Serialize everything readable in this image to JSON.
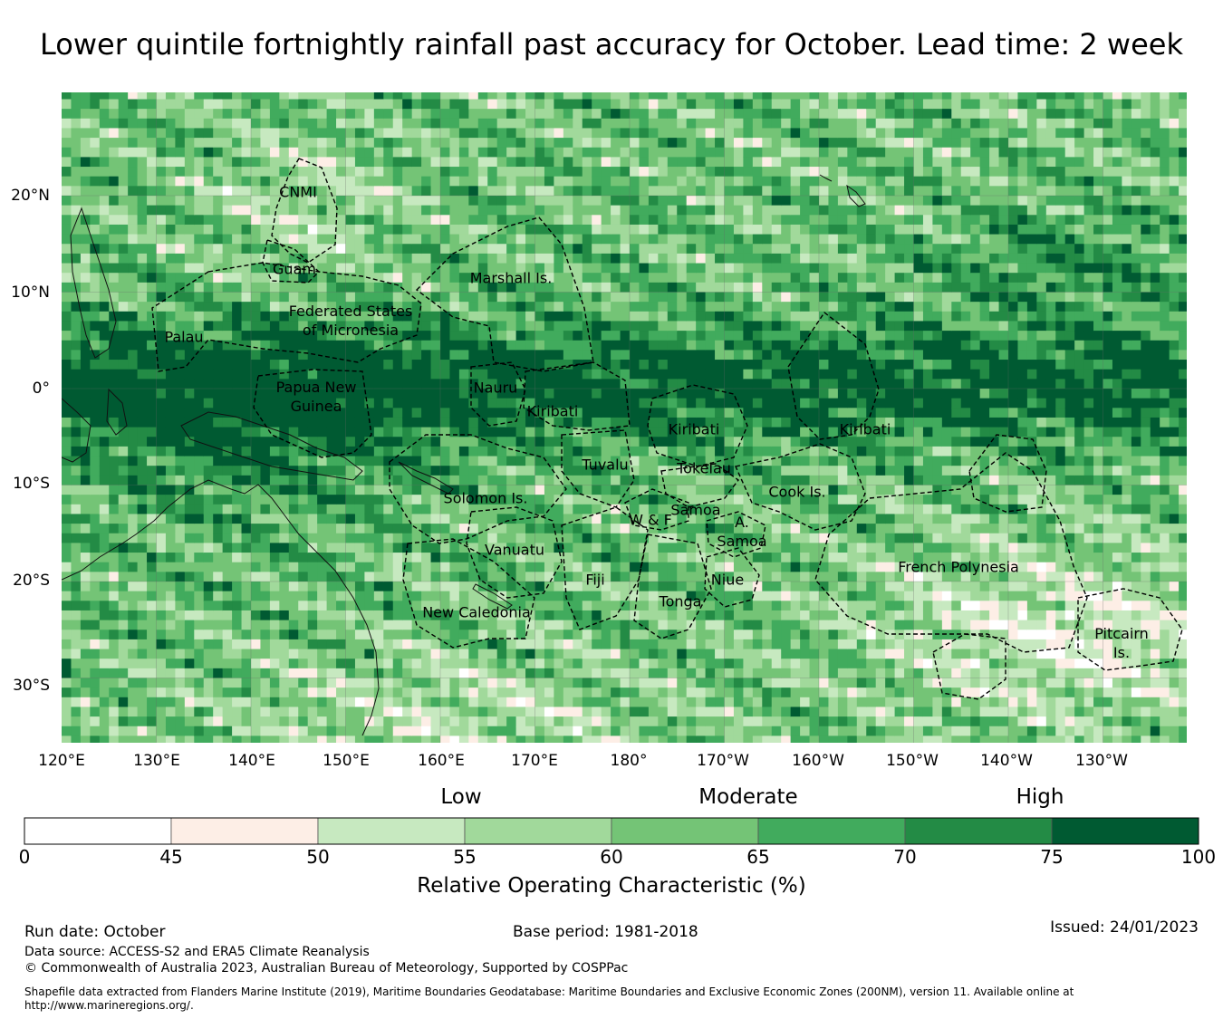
{
  "title": "Lower quintile fortnightly rainfall past accuracy for October. Lead time: 2 week",
  "map": {
    "lon_ticks": [
      "120°E",
      "130°E",
      "140°E",
      "150°E",
      "160°E",
      "170°E",
      "180°",
      "170°W",
      "160°W",
      "150°W",
      "140°W",
      "130°W"
    ],
    "lat_ticks": [
      "20°N",
      "10°N",
      "0°",
      "10°S",
      "20°S",
      "30°S"
    ],
    "regions": [
      {
        "label": "CNMI"
      },
      {
        "label": "Guam"
      },
      {
        "label": "Marshall Is."
      },
      {
        "label": "Federated States\nof Micronesia"
      },
      {
        "label": "Palau"
      },
      {
        "label": "Papua New\nGuinea"
      },
      {
        "label": "Nauru"
      },
      {
        "label": "Kiribati"
      },
      {
        "label": "Kiribati"
      },
      {
        "label": "Kiribati"
      },
      {
        "label": "Tuvalu"
      },
      {
        "label": "Tokelau"
      },
      {
        "label": "Cook Is."
      },
      {
        "label": "Solomon Is."
      },
      {
        "label": "Samoa"
      },
      {
        "label": "W & F"
      },
      {
        "label": "A.\nSamoa"
      },
      {
        "label": "Vanuatu"
      },
      {
        "label": "Fiji"
      },
      {
        "label": "Niue"
      },
      {
        "label": "Tonga"
      },
      {
        "label": "French Polynesia"
      },
      {
        "label": "New Caledonia"
      },
      {
        "label": "Pitcairn\nIs."
      }
    ]
  },
  "colorbar": {
    "categories": [
      "Low",
      "Moderate",
      "High"
    ],
    "ticks": [
      "0",
      "45",
      "50",
      "55",
      "60",
      "65",
      "70",
      "75",
      "100"
    ],
    "bins": [
      {
        "from": 0,
        "to": 45,
        "color": "#ffffff"
      },
      {
        "from": 45,
        "to": 50,
        "color": "#fdeee6"
      },
      {
        "from": 50,
        "to": 55,
        "color": "#c7e9c0"
      },
      {
        "from": 55,
        "to": 60,
        "color": "#a1d99b"
      },
      {
        "from": 60,
        "to": 65,
        "color": "#74c476"
      },
      {
        "from": 65,
        "to": 70,
        "color": "#41ab5d"
      },
      {
        "from": 70,
        "to": 75,
        "color": "#238b45"
      },
      {
        "from": 75,
        "to": 100,
        "color": "#005a32"
      }
    ],
    "label": "Relative Operating Characteristic (%)"
  },
  "footer": {
    "run_date": "Run date: October",
    "base_period": "Base period: 1981-2018",
    "issued": "Issued: 24/01/2023",
    "data_source": "Data source: ACCESS-S2 and ERA5 Climate Reanalysis",
    "copyright": "© Commonwealth of Australia 2023, Australian Bureau of Meteorology, Supported by COSPPac",
    "shapefile": "Shapefile data extracted from Flanders Marine Institute (2019), Maritime Boundaries Geodatabase: Maritime Boundaries and Exclusive Economic Zones (200NM), version 11. Available online at http://www.marineregions.org/."
  }
}
